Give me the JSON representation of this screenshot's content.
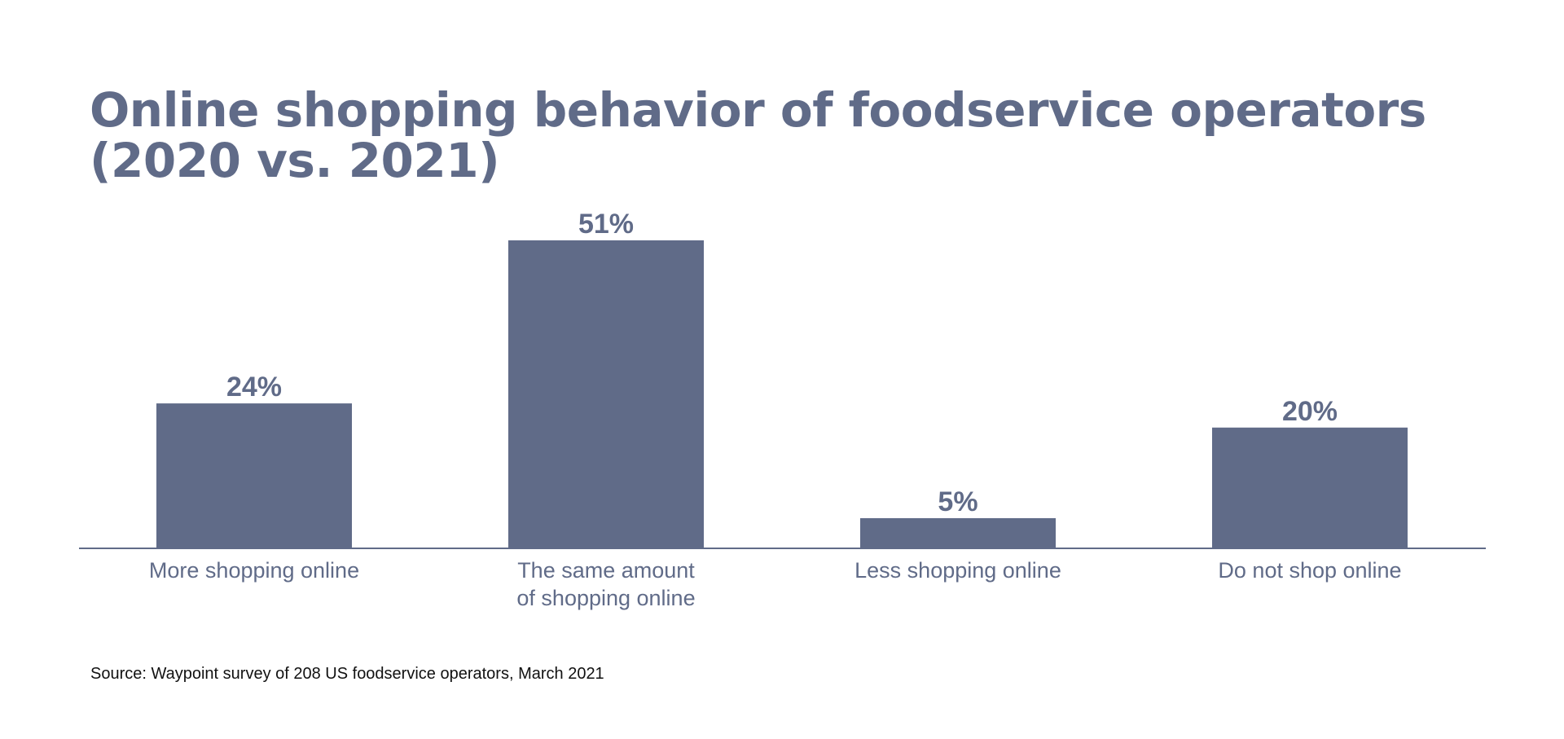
{
  "title": "Online shopping behavior of foodservice operators (2020 vs. 2021)",
  "source": "Source: Waypoint survey of 208 US foodservice operators, March 2021",
  "colors": {
    "bar": "#606b88",
    "text": "#606b88",
    "axis": "#606b88",
    "source": "#111111"
  },
  "chart_data": {
    "type": "bar",
    "title": "Online shopping behavior of foodservice operators (2020 vs. 2021)",
    "categories": [
      [
        "More shopping online"
      ],
      [
        "The same amount",
        "of shopping online"
      ],
      [
        "Less shopping online"
      ],
      [
        "Do not shop online"
      ]
    ],
    "values": [
      24,
      51,
      5,
      20
    ],
    "value_labels": [
      "24%",
      "51%",
      "5%",
      "20%"
    ],
    "unit": "%",
    "ylim": [
      0,
      51
    ],
    "grid": false,
    "legend": "none",
    "xlabel": "",
    "ylabel": ""
  }
}
